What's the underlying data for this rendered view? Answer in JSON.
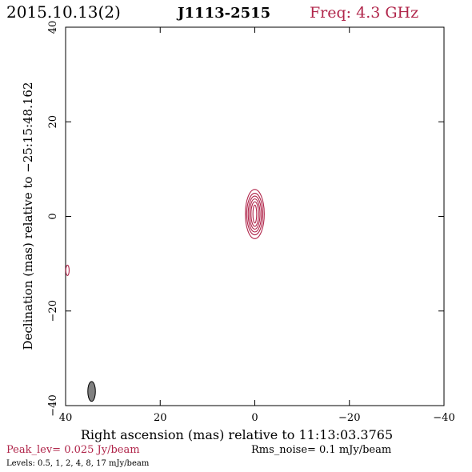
{
  "header": {
    "date": "2015.10.13(2)",
    "source": "J1113-2515",
    "freq": "Freq: 4.3 GHz"
  },
  "footer": {
    "peak": "Peak_lev=  0.025 Jy/beam",
    "rms": "Rms_noise=  0.1 mJy/beam",
    "levels": "Levels: 0.5,    1,    2,    4,    8,   17  mJy/beam"
  },
  "colors": {
    "accent": "#b0254a",
    "axis": "#000000",
    "beam_fill": "#808080"
  },
  "chart_data": {
    "type": "contour",
    "title": "J1113-2515",
    "xlabel": "Right ascension (mas) relative to 11:13:03.3765",
    "ylabel": "Declination (mas) relative to −25:15:48.162",
    "xlim": [
      40,
      -40
    ],
    "ylim": [
      -40,
      40
    ],
    "xticks": [
      40,
      20,
      0,
      -20,
      -40
    ],
    "yticks": [
      -40,
      -20,
      0,
      20,
      40
    ],
    "xtick_labels": [
      "40",
      "20",
      "0",
      "−20",
      "−40"
    ],
    "ytick_labels": [
      "−40",
      "−20",
      "0",
      "20",
      "40"
    ],
    "grid": false,
    "contour_levels_mJy": [
      0.5,
      1,
      2,
      4,
      8,
      17
    ],
    "contours": [
      {
        "x": 0,
        "y": 0.5,
        "semi_x": 0.4,
        "semi_y": 1.9
      },
      {
        "x": 0,
        "y": 0.5,
        "semi_x": 0.8,
        "semi_y": 2.6
      },
      {
        "x": 0,
        "y": 0.5,
        "semi_x": 1.1,
        "semi_y": 3.2
      },
      {
        "x": 0,
        "y": 0.5,
        "semi_x": 1.4,
        "semi_y": 3.8
      },
      {
        "x": 0,
        "y": 0.5,
        "semi_x": 1.7,
        "semi_y": 4.4
      },
      {
        "x": 0,
        "y": 0.5,
        "semi_x": 2.0,
        "semi_y": 5.2
      },
      {
        "x": 39.6,
        "y": -11.4,
        "semi_x": 0.35,
        "semi_y": 1.1
      }
    ],
    "beam": {
      "x": 34.5,
      "y": -37.0,
      "semi_x": 0.8,
      "semi_y": 2.1
    }
  }
}
